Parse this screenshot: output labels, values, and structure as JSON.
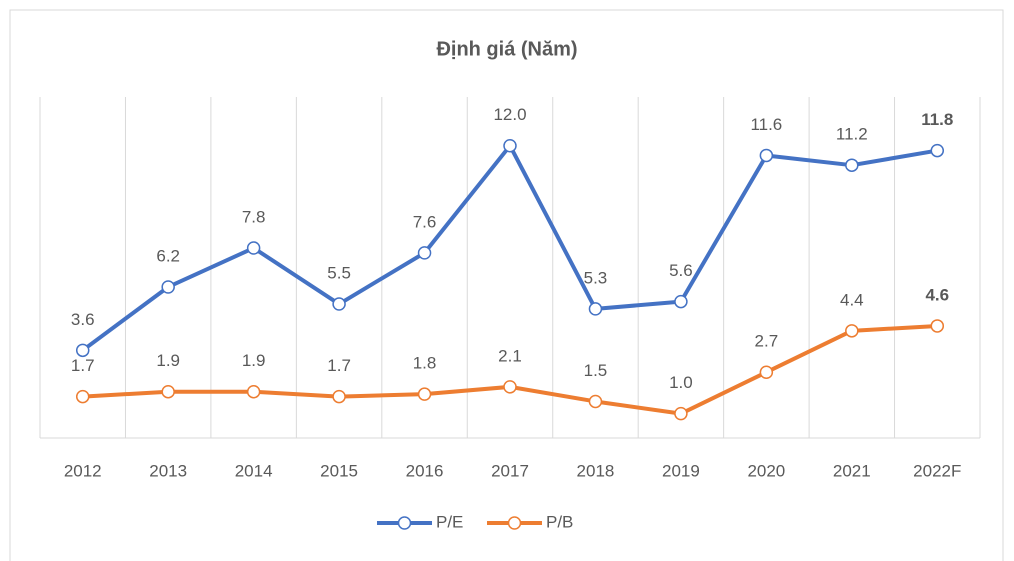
{
  "chart_data": {
    "type": "line",
    "title": "Định giá (Năm)",
    "categories": [
      "2012",
      "2013",
      "2014",
      "2015",
      "2016",
      "2017",
      "2018",
      "2019",
      "2020",
      "2021",
      "2022F"
    ],
    "series": [
      {
        "name": "P/E",
        "color": "#4472c4",
        "values": [
          3.6,
          6.2,
          7.8,
          5.5,
          7.6,
          12.0,
          5.3,
          5.6,
          11.6,
          11.2,
          11.8
        ],
        "value_labels": [
          "3.6",
          "6.2",
          "7.8",
          "5.5",
          "7.6",
          "12.0",
          "5.3",
          "5.6",
          "11.6",
          "11.2",
          "11.8"
        ]
      },
      {
        "name": "P/B",
        "color": "#ed7d31",
        "values": [
          1.7,
          1.9,
          1.9,
          1.7,
          1.8,
          2.1,
          1.5,
          1.0,
          2.7,
          4.4,
          4.6
        ],
        "value_labels": [
          "1.7",
          "1.9",
          "1.9",
          "1.7",
          "1.8",
          "2.1",
          "1.5",
          "1.0",
          "2.7",
          "4.4",
          "4.6"
        ]
      }
    ],
    "ylim": [
      0,
      14
    ],
    "grid": true,
    "legend": "bottom"
  }
}
